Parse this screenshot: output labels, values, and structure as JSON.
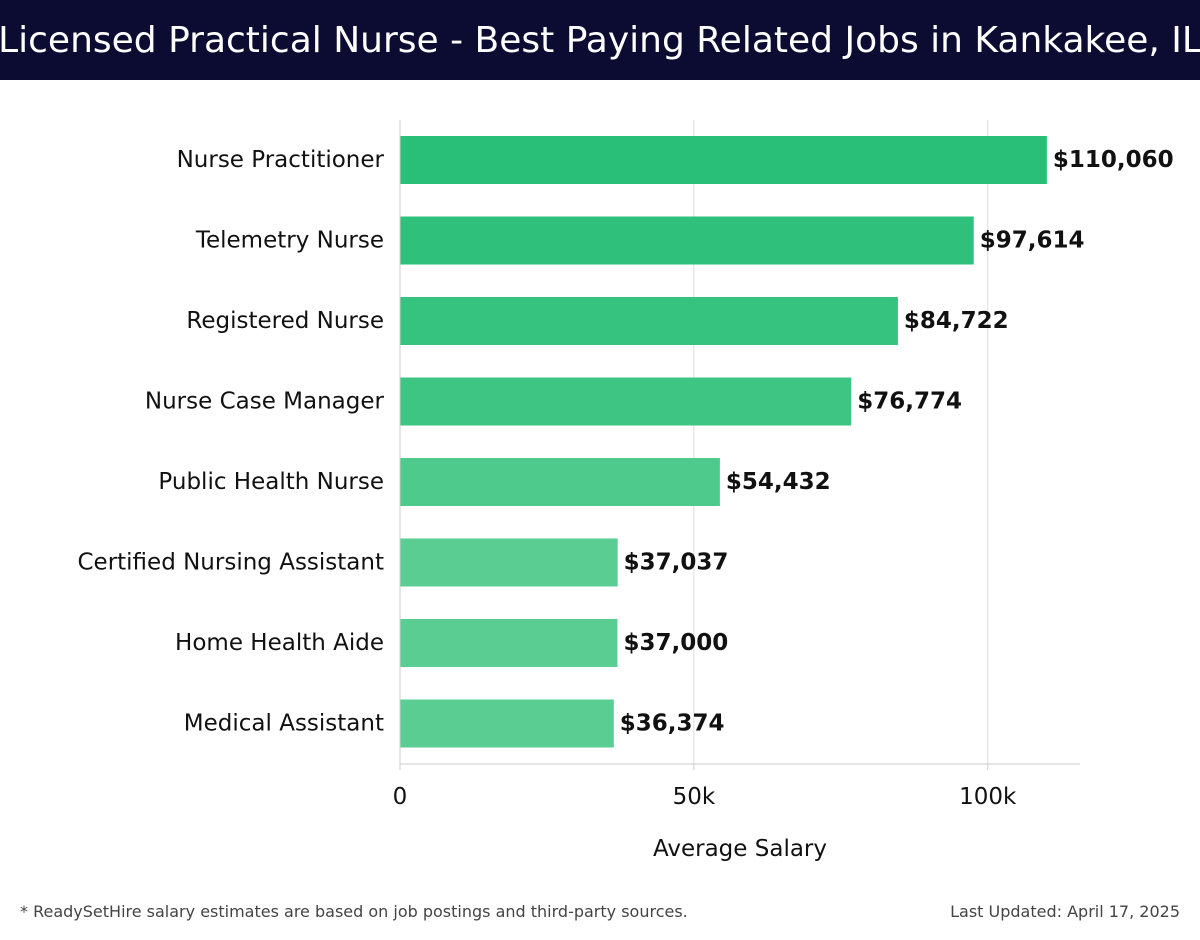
{
  "header": {
    "title": "Licensed Practical Nurse - Best Paying Related Jobs in Kankakee, IL"
  },
  "footer": {
    "note": "* ReadySetHire salary estimates are based on job postings and third-party sources.",
    "updated": "Last Updated: April 17, 2025"
  },
  "colors": {
    "header_bg": "#0c0c33",
    "bar_colors": [
      "#29bf79",
      "#2fc07b",
      "#36c37f",
      "#3ec584",
      "#4fca8d",
      "#5acd93",
      "#5acd93",
      "#5acd93"
    ],
    "grid": "#dddddd",
    "axis": "#cccccc"
  },
  "chart_data": {
    "type": "bar",
    "orientation": "horizontal",
    "categories": [
      "Nurse Practitioner",
      "Telemetry Nurse",
      "Registered Nurse",
      "Nurse Case Manager",
      "Public Health Nurse",
      "Certified Nursing Assistant",
      "Home Health Aide",
      "Medical Assistant"
    ],
    "values": [
      110060,
      97614,
      84722,
      76774,
      54432,
      37037,
      37000,
      36374
    ],
    "value_labels": [
      "$110,060",
      "$97,614",
      "$84,722",
      "$76,774",
      "$54,432",
      "$37,037",
      "$37,000",
      "$36,374"
    ],
    "xlabel": "Average Salary",
    "ylabel": "",
    "xlim": [
      0,
      115700
    ],
    "xticks": [
      0,
      50000,
      100000
    ],
    "xtick_labels": [
      "0",
      "50k",
      "100k"
    ],
    "grid": true
  }
}
